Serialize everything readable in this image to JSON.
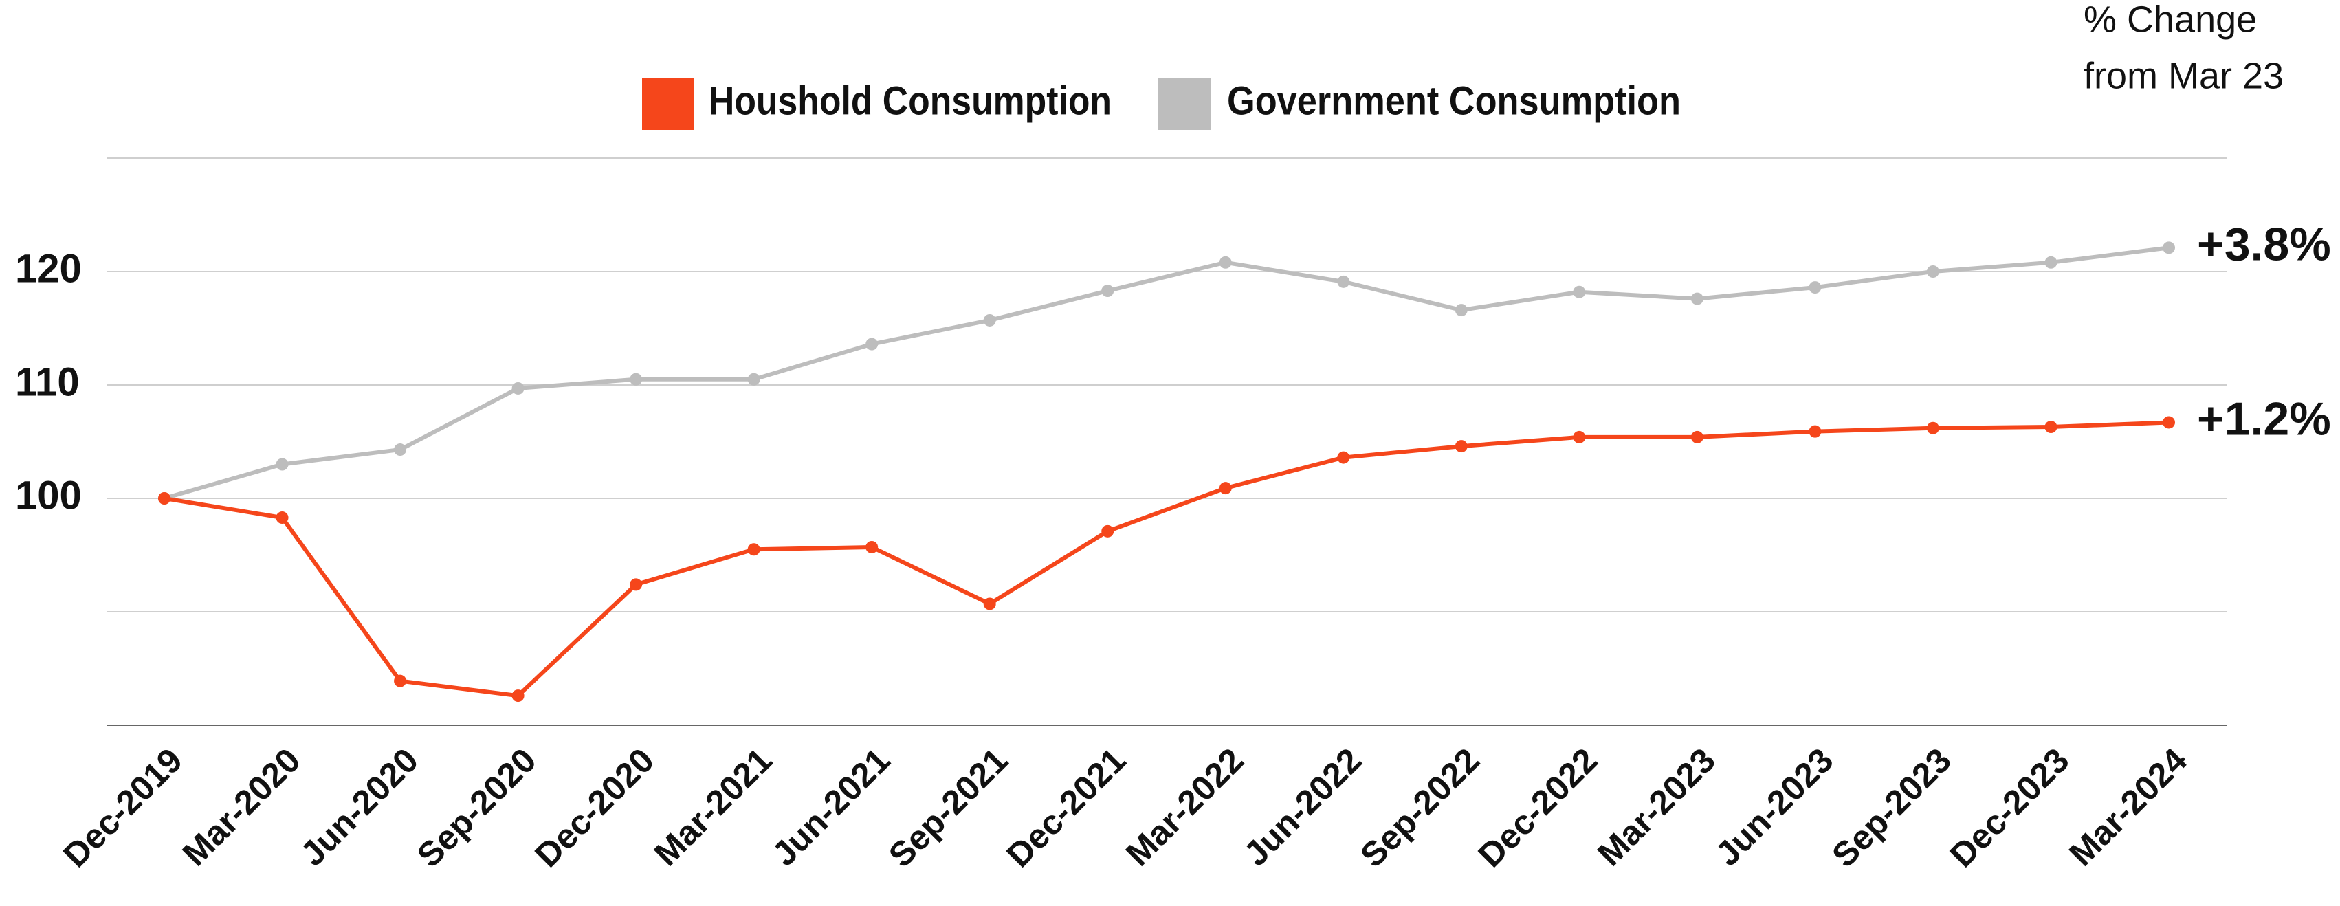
{
  "chart_data": {
    "type": "line",
    "categories": [
      "Dec-2019",
      "Mar-2020",
      "Jun-2020",
      "Sep-2020",
      "Dec-2020",
      "Mar-2021",
      "Jun-2021",
      "Sep-2021",
      "Dec-2021",
      "Mar-2022",
      "Jun-2022",
      "Sep-2022",
      "Dec-2022",
      "Mar-2023",
      "Jun-2023",
      "Sep-2023",
      "Dec-2023",
      "Mar-2024"
    ],
    "series": [
      {
        "name": "Houshold Consumption",
        "color": "#f5461b",
        "end_label": "+1.2%",
        "values": [
          100,
          98.3,
          83.9,
          82.6,
          92.4,
          95.5,
          95.7,
          90.7,
          97.1,
          100.9,
          103.6,
          104.6,
          105.4,
          105.4,
          105.9,
          106.2,
          106.3,
          106.7
        ]
      },
      {
        "name": "Government Consumption",
        "color": "#bdbdbd",
        "end_label": "+3.8%",
        "values": [
          100,
          103.0,
          104.3,
          109.7,
          110.5,
          110.5,
          113.6,
          115.7,
          118.3,
          120.8,
          119.1,
          116.6,
          118.2,
          117.6,
          118.6,
          120.0,
          120.8,
          122.1
        ]
      }
    ],
    "note_lines": [
      "% Change",
      "from Mar 23"
    ],
    "ylim": [
      80,
      130
    ],
    "yticks": [
      100,
      110,
      120
    ],
    "ygrid": [
      90,
      100,
      110,
      120,
      130
    ],
    "grid": true,
    "legend": "top"
  }
}
